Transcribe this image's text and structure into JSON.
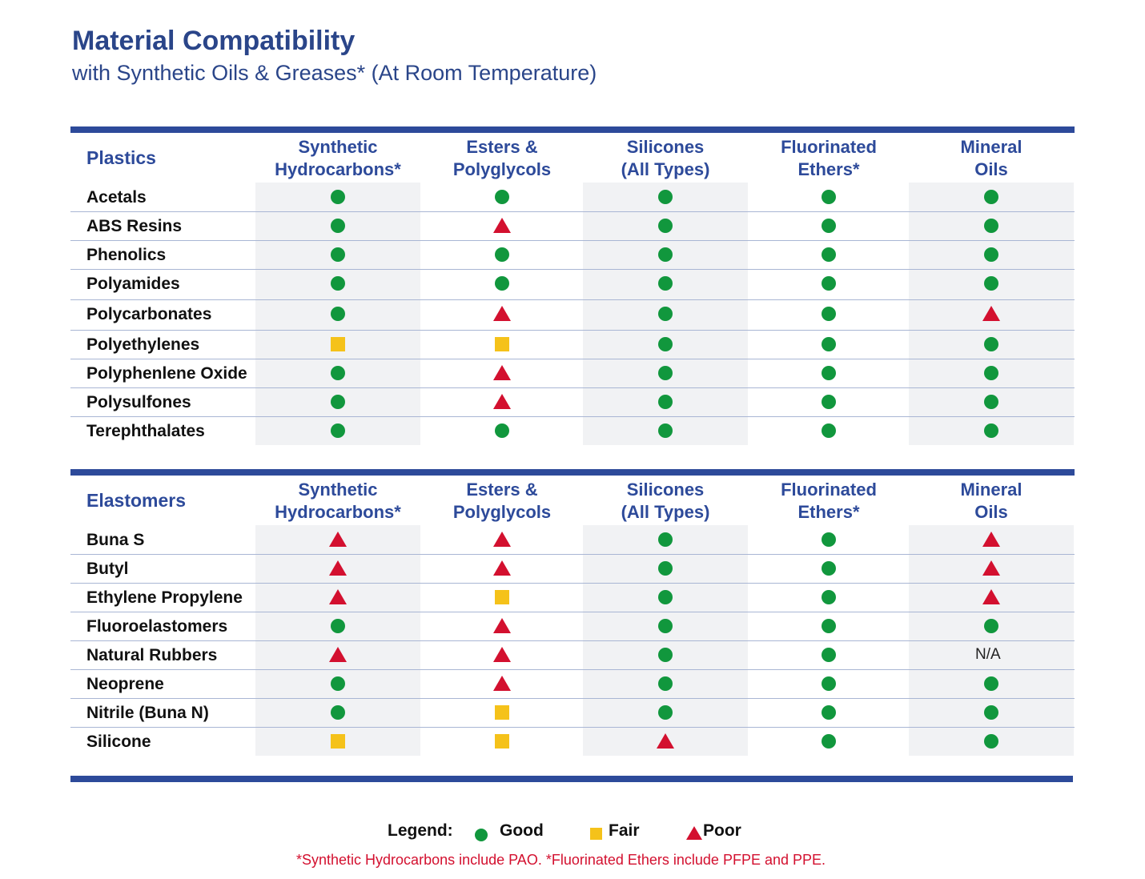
{
  "title": "Material Compatibility",
  "subtitle": "with Synthetic Oils & Greases* (At Room Temperature)",
  "columns": [
    "Synthetic\nHydrocarbons*",
    "Esters &\nPolyglycols",
    "Silicones\n(All Types)",
    "Fluorinated\nEthers*",
    "Mineral\nOils"
  ],
  "colors": {
    "good": "#11973d",
    "fair": "#f5c21a",
    "poor": "#d3102f",
    "accent": "#2d4a9a"
  },
  "tables": [
    {
      "label": "Plastics",
      "rows": [
        {
          "name": "Acetals",
          "values": [
            "good",
            "good",
            "good",
            "good",
            "good"
          ]
        },
        {
          "name": "ABS Resins",
          "values": [
            "good",
            "poor",
            "good",
            "good",
            "good"
          ]
        },
        {
          "name": "Phenolics",
          "values": [
            "good",
            "good",
            "good",
            "good",
            "good"
          ]
        },
        {
          "name": "Polyamides",
          "values": [
            "good",
            "good",
            "good",
            "good",
            "good"
          ]
        },
        {
          "name": "Polycarbonates",
          "values": [
            "good",
            "poor",
            "good",
            "good",
            "poor"
          ]
        },
        {
          "name": "Polyethylenes",
          "values": [
            "fair",
            "fair",
            "good",
            "good",
            "good"
          ]
        },
        {
          "name": "Polyphenlene Oxide",
          "values": [
            "good",
            "poor",
            "good",
            "good",
            "good"
          ]
        },
        {
          "name": "Polysulfones",
          "values": [
            "good",
            "poor",
            "good",
            "good",
            "good"
          ]
        },
        {
          "name": "Terephthalates",
          "values": [
            "good",
            "good",
            "good",
            "good",
            "good"
          ]
        }
      ]
    },
    {
      "label": "Elastomers",
      "rows": [
        {
          "name": "Buna S",
          "values": [
            "poor",
            "poor",
            "good",
            "good",
            "poor"
          ]
        },
        {
          "name": "Butyl",
          "values": [
            "poor",
            "poor",
            "good",
            "good",
            "poor"
          ]
        },
        {
          "name": "Ethylene Propylene",
          "values": [
            "poor",
            "fair",
            "good",
            "good",
            "poor"
          ]
        },
        {
          "name": "Fluoroelastomers",
          "values": [
            "good",
            "poor",
            "good",
            "good",
            "good"
          ]
        },
        {
          "name": "Natural Rubbers",
          "values": [
            "poor",
            "poor",
            "good",
            "good",
            "N/A"
          ]
        },
        {
          "name": "Neoprene",
          "values": [
            "good",
            "poor",
            "good",
            "good",
            "good"
          ]
        },
        {
          "name": "Nitrile (Buna N)",
          "values": [
            "good",
            "fair",
            "good",
            "good",
            "good"
          ]
        },
        {
          "name": "Silicone",
          "values": [
            "fair",
            "fair",
            "poor",
            "good",
            "good"
          ]
        }
      ]
    }
  ],
  "legend": {
    "title": "Legend:",
    "good": "Good",
    "fair": "Fair",
    "poor": "Poor"
  },
  "footnote": "*Synthetic Hydrocarbons include PAO. *Fluorinated Ethers include PFPE and PPE."
}
